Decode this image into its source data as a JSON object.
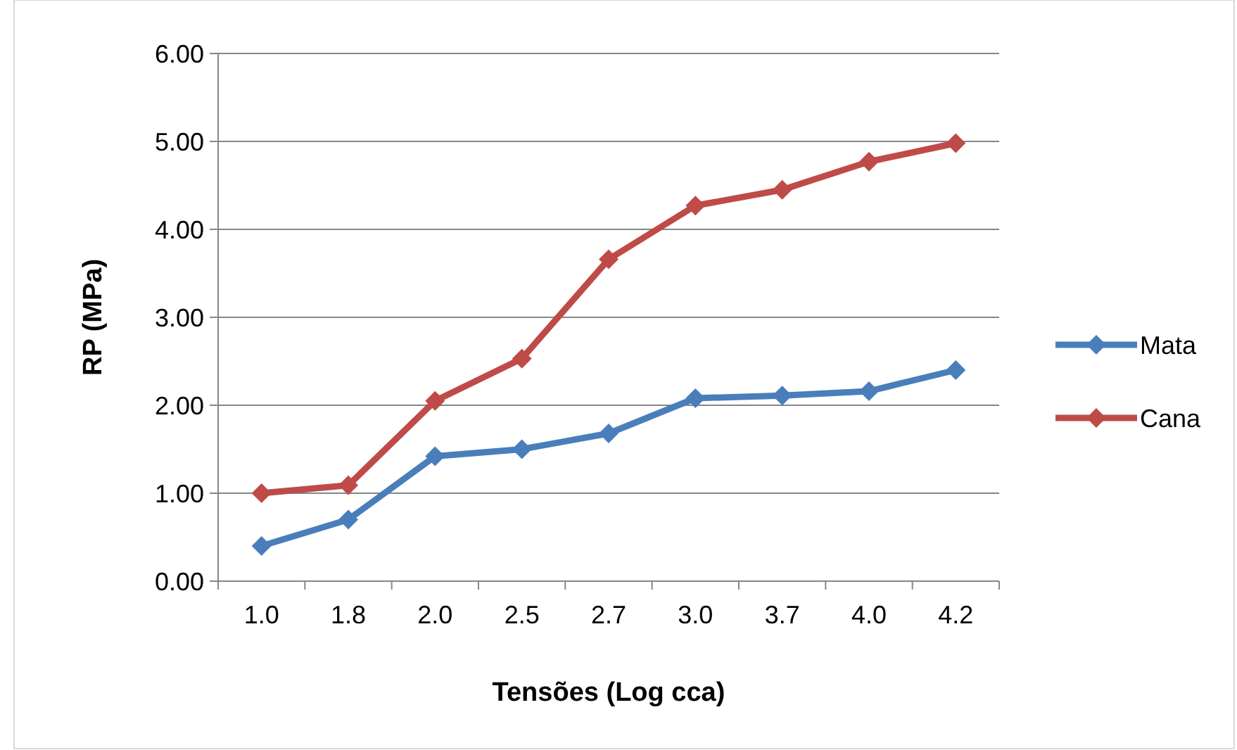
{
  "chart_data": {
    "type": "line",
    "xlabel": "Tensões (Log cca)",
    "ylabel": "RP (MPa)",
    "categories": [
      "1.0",
      "1.8",
      "2.0",
      "2.5",
      "2.7",
      "3.0",
      "3.7",
      "4.0",
      "4.2"
    ],
    "series": [
      {
        "name": "Mata",
        "color": "#4a7ebb",
        "values": [
          0.4,
          0.7,
          1.42,
          1.5,
          1.68,
          2.08,
          2.11,
          2.16,
          2.4
        ]
      },
      {
        "name": "Cana",
        "color": "#be4b48",
        "values": [
          1.0,
          1.09,
          2.05,
          2.53,
          3.66,
          4.27,
          4.45,
          4.77,
          4.98
        ]
      }
    ],
    "ylim": [
      0,
      6
    ],
    "yticks": [
      {
        "value": 0,
        "label": "0.00"
      },
      {
        "value": 1,
        "label": "1.00"
      },
      {
        "value": 2,
        "label": "2.00"
      },
      {
        "value": 3,
        "label": "3.00"
      },
      {
        "value": 4,
        "label": "4.00"
      },
      {
        "value": 5,
        "label": "5.00"
      },
      {
        "value": 6,
        "label": "6.00"
      }
    ],
    "grid": "y",
    "legend": "right",
    "marker": "diamond",
    "line_style": "solid"
  }
}
